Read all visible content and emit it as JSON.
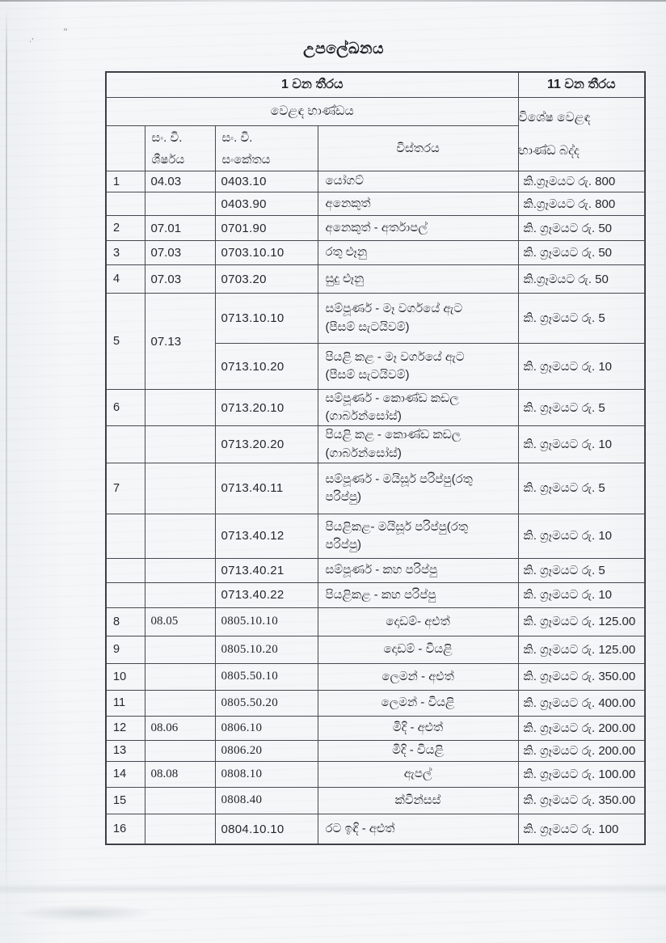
{
  "page": {
    "title": "උපලේඛනය"
  },
  "table": {
    "header": {
      "col1_group": "1 වන තීරය",
      "col11_group": "11 වන තීරය",
      "trade_goods": "වෙළඳ භාණ්ඩය",
      "duty_line1": "විශේෂ වෙළඳ",
      "duty_line2": "භාණ්ඩ බද්ද",
      "hs_heading_line1": "සං. වි.",
      "hs_heading_line2": "ශීර්ෂය",
      "hs_code_line1": "සං. වි.",
      "hs_code_line2": "සංකේතය",
      "description": "විස්තරය"
    },
    "rows": [
      {
        "serial": "1",
        "heading": "04.03",
        "code": "0403.10",
        "desc": "යෝගට්",
        "duty": "කි.ග්‍රෑමයට රු. 800"
      },
      {
        "serial": "",
        "heading": "",
        "code": "0403.90",
        "desc": "අනෙකුත්",
        "duty": "කි.ග්‍රෑමයට රු. 800"
      },
      {
        "serial": "2",
        "heading": "07.01",
        "code": "0701.90",
        "desc": "අනෙකුත් - අර්තාපල්",
        "duty": "කි. ග්‍රෑමයට රු. 50"
      },
      {
        "serial": "3",
        "heading": "07.03",
        "code": "0703.10.10",
        "desc": "රතු ළූනු",
        "duty": "කි. ග්‍රෑමයට රු. 50"
      },
      {
        "serial": "4",
        "heading": "07.03",
        "code": "0703.20",
        "desc": "සුදු ළූනු",
        "duty": "කි.ග්‍රෑමයට රු. 50"
      },
      {
        "serial": "5",
        "heading": "07.13",
        "span2": true,
        "code": "0713.10.10",
        "desc": "සම්පූර්ණ - මෑ වර්ගයේ ඇට\n(පීසම් සැටයිවම්)",
        "duty": "කි. ග්‍රෑමයට රු. 5"
      },
      {
        "merged": true,
        "code": "0713.10.20",
        "desc": "පියළි කළ - මෑ වර්ගයේ ඇට\n(පීසම් සැටයිවම්)",
        "duty": "කි. ග්‍රෑමයට රු. 10"
      },
      {
        "serial": "6",
        "heading": "",
        "code": "0713.20.10",
        "desc": "සම්පූර්ණ - කොණ්ඩ කඩල\n(ගාර්බන්සෝස්)",
        "duty": "කි. ග්‍රෑමයට රු. 5"
      },
      {
        "serial": "",
        "heading": "",
        "code": "0713.20.20",
        "desc": "පියළි කළ - කොණ්ඩ කඩල\n(ගාර්බන්සෝස්)",
        "duty": "කි. ග්‍රෑමයට රු. 10"
      },
      {
        "serial": "7",
        "heading": "",
        "code": "0713.40.11",
        "desc": "සම්පූර්ණ - මයිසූර් පරිප්පු(රතු\nපරිප්පු)",
        "duty": "කි. ග්‍රෑමයට රු. 5"
      },
      {
        "serial": "",
        "heading": "",
        "code": "0713.40.12",
        "desc": "පියළිකළ- මයිසූර් පරිප්පු(රතු\nපරිප්පු)",
        "duty": "කි. ග්‍රෑමයට රු. 10"
      },
      {
        "serial": "",
        "heading": "",
        "code": "0713.40.21",
        "desc": "සම්පූර්ණ - කහ පරිප්පු",
        "duty": "කි. ග්‍රෑමයට රු. 5"
      },
      {
        "serial": "",
        "heading": "",
        "code": "0713.40.22",
        "desc": "පියළිකළ - කහ පරිප්පු",
        "duty": "කි. ග්‍රෑමයට රු. 10"
      },
      {
        "serial": "8",
        "heading": "08.05",
        "code": "0805.10.10",
        "desc": "දොඩම්- අළුත්",
        "duty": "කි. ග්‍රෑමයට රු. 125.00",
        "desc_align": "center",
        "serif": true
      },
      {
        "serial": "9",
        "heading": "",
        "code": "0805.10.20",
        "desc": "දොඩම් - වියළි",
        "duty": "කි. ග්‍රෑමයට රු. 125.00",
        "desc_align": "center",
        "serif": true
      },
      {
        "serial": "10",
        "heading": "",
        "code": "0805.50.10",
        "desc": "ලෙමන් - අළුත්",
        "duty": "කි. ග්‍රෑමයට රු. 350.00",
        "desc_align": "center",
        "serif": true
      },
      {
        "serial": "11",
        "heading": "",
        "code": "0805.50.20",
        "desc": "ලෙමන් - වියළි",
        "duty": "කි. ග්‍රෑමයට රු. 400.00",
        "desc_align": "center",
        "serif": true
      },
      {
        "serial": "12",
        "heading": "08.06",
        "code": "0806.10",
        "desc": "මිදි - අළුත්",
        "duty": "කි. ග්‍රෑමයට රු. 200.00",
        "desc_align": "center",
        "serif": true
      },
      {
        "serial": "13",
        "heading": "",
        "code": "0806.20",
        "desc": "මිදි - වියළි",
        "duty": "කි. ග්‍රෑමයට රු. 200.00",
        "desc_align": "center",
        "serif": true
      },
      {
        "serial": "14",
        "heading": "08.08",
        "code": "0808.10",
        "desc": "ඇපල්",
        "duty": "කි. ග්‍රෑමයට රු. 100.00",
        "desc_align": "center",
        "serif": true
      },
      {
        "serial": "15",
        "heading": "",
        "code": "0808.40",
        "desc": "ක්වීන්සස්",
        "duty": "කි. ග්‍රෑමයට රු. 350.00",
        "desc_align": "center",
        "serif": true
      },
      {
        "serial": "16",
        "heading": "",
        "code": "0804.10.10",
        "desc": "රට ඉඳි - අළුත්",
        "duty": "කි. ග්‍රෑමයට රු. 100"
      }
    ]
  }
}
